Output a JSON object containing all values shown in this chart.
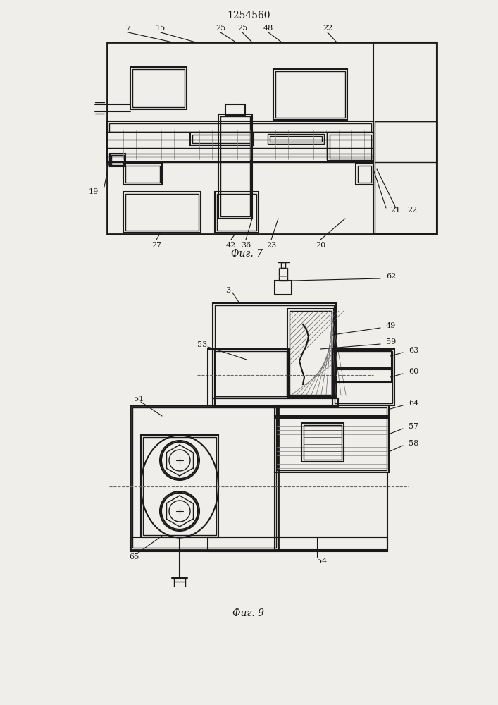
{
  "title": "1254560",
  "fig7_label": "Фиг. 7",
  "fig9_label": "Фиг. 9",
  "bg_color": "#f0eeea",
  "lc": "#1a1a1a"
}
